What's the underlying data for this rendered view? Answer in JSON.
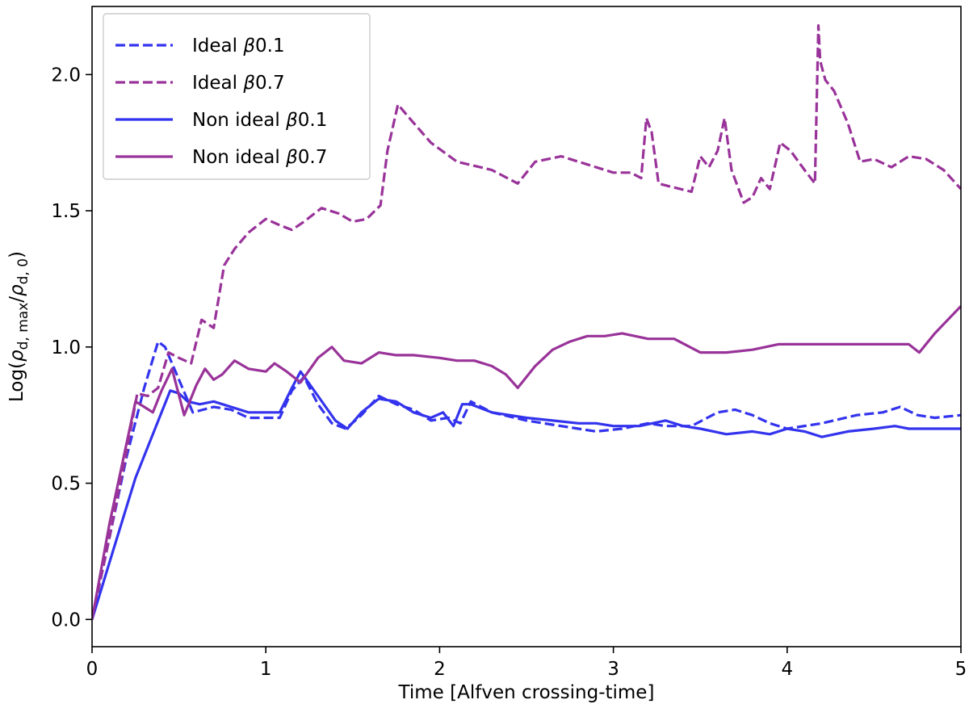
{
  "chart_data": {
    "type": "line",
    "title": "",
    "xlabel": "Time [Alfven crossing-time]",
    "ylabel_prefix": "Log(",
    "ylabel_rho": "ρ",
    "ylabel_sub_max": "d, max",
    "ylabel_slash": "/",
    "ylabel_sub_zero": "d, 0",
    "ylabel_suffix": ")",
    "xlim": [
      0,
      5
    ],
    "ylim": [
      -0.1,
      2.25
    ],
    "xticks": [
      "0",
      "1",
      "2",
      "3",
      "4",
      "5"
    ],
    "yticks": [
      "0.0",
      "0.5",
      "1.0",
      "1.5",
      "2.0"
    ],
    "grid": false,
    "legend_position": "top-left",
    "series": [
      {
        "name": "Ideal β0.1",
        "name_prefix": "Ideal ",
        "name_beta": "β",
        "name_value": "0.1",
        "color": "#3333ee",
        "dash": true,
        "x": [
          0,
          0.1,
          0.2,
          0.3,
          0.38,
          0.42,
          0.5,
          0.58,
          0.7,
          0.8,
          0.9,
          1.0,
          1.08,
          1.15,
          1.22,
          1.3,
          1.38,
          1.46,
          1.55,
          1.65,
          1.75,
          1.85,
          1.95,
          2.05,
          2.12,
          2.18,
          2.3,
          2.5,
          2.7,
          2.9,
          3.05,
          3.2,
          3.3,
          3.45,
          3.6,
          3.7,
          3.8,
          3.9,
          4.0,
          4.2,
          4.4,
          4.55,
          4.65,
          4.75,
          4.85,
          5.0
        ],
        "y": [
          0,
          0.3,
          0.6,
          0.85,
          1.02,
          1.0,
          0.88,
          0.76,
          0.78,
          0.77,
          0.74,
          0.74,
          0.74,
          0.84,
          0.89,
          0.79,
          0.72,
          0.7,
          0.75,
          0.82,
          0.79,
          0.77,
          0.73,
          0.74,
          0.72,
          0.8,
          0.76,
          0.73,
          0.71,
          0.69,
          0.7,
          0.72,
          0.71,
          0.71,
          0.76,
          0.77,
          0.75,
          0.72,
          0.7,
          0.72,
          0.75,
          0.76,
          0.78,
          0.75,
          0.74,
          0.75
        ]
      },
      {
        "name": "Ideal β0.7",
        "name_prefix": "Ideal ",
        "name_beta": "β",
        "name_value": "0.7",
        "color": "#993399",
        "dash": true,
        "x": [
          0,
          0.1,
          0.2,
          0.26,
          0.32,
          0.38,
          0.44,
          0.5,
          0.57,
          0.63,
          0.7,
          0.76,
          0.82,
          0.9,
          1.0,
          1.07,
          1.15,
          1.22,
          1.32,
          1.42,
          1.5,
          1.58,
          1.66,
          1.7,
          1.76,
          1.84,
          1.95,
          2.1,
          2.3,
          2.45,
          2.55,
          2.7,
          2.85,
          3.0,
          3.1,
          3.16,
          3.19,
          3.22,
          3.26,
          3.32,
          3.45,
          3.5,
          3.55,
          3.6,
          3.64,
          3.68,
          3.75,
          3.8,
          3.85,
          3.9,
          3.96,
          4.02,
          4.1,
          4.16,
          4.18,
          4.19,
          4.22,
          4.27,
          4.35,
          4.42,
          4.5,
          4.6,
          4.7,
          4.8,
          4.9,
          5.0
        ],
        "y": [
          0,
          0.3,
          0.62,
          0.83,
          0.82,
          0.85,
          0.98,
          0.96,
          0.94,
          1.1,
          1.07,
          1.3,
          1.36,
          1.42,
          1.47,
          1.45,
          1.43,
          1.46,
          1.51,
          1.49,
          1.46,
          1.47,
          1.52,
          1.72,
          1.89,
          1.83,
          1.75,
          1.68,
          1.65,
          1.6,
          1.68,
          1.7,
          1.67,
          1.64,
          1.64,
          1.62,
          1.84,
          1.79,
          1.6,
          1.59,
          1.57,
          1.7,
          1.66,
          1.72,
          1.84,
          1.65,
          1.53,
          1.55,
          1.62,
          1.58,
          1.75,
          1.72,
          1.65,
          1.6,
          2.18,
          2.05,
          1.98,
          1.94,
          1.82,
          1.68,
          1.69,
          1.66,
          1.7,
          1.69,
          1.65,
          1.58
        ]
      },
      {
        "name": "Non ideal β0.1",
        "name_prefix": "Non ideal ",
        "name_beta": "β",
        "name_value": "0.1",
        "color": "#3333ee",
        "dash": false,
        "x": [
          0,
          0.12,
          0.25,
          0.35,
          0.45,
          0.5,
          0.55,
          0.62,
          0.7,
          0.8,
          0.9,
          1.0,
          1.08,
          1.15,
          1.2,
          1.3,
          1.4,
          1.47,
          1.55,
          1.65,
          1.75,
          1.85,
          1.95,
          2.02,
          2.08,
          2.13,
          2.18,
          2.3,
          2.5,
          2.65,
          2.8,
          2.9,
          3.0,
          3.15,
          3.3,
          3.4,
          3.5,
          3.65,
          3.8,
          3.9,
          4.0,
          4.1,
          4.2,
          4.35,
          4.5,
          4.62,
          4.7,
          4.85,
          5.0
        ],
        "y": [
          0,
          0.25,
          0.52,
          0.68,
          0.84,
          0.83,
          0.8,
          0.79,
          0.8,
          0.78,
          0.76,
          0.76,
          0.76,
          0.85,
          0.91,
          0.82,
          0.73,
          0.7,
          0.76,
          0.81,
          0.8,
          0.76,
          0.74,
          0.76,
          0.71,
          0.79,
          0.79,
          0.76,
          0.74,
          0.73,
          0.72,
          0.72,
          0.71,
          0.71,
          0.73,
          0.71,
          0.7,
          0.68,
          0.69,
          0.68,
          0.7,
          0.69,
          0.67,
          0.69,
          0.7,
          0.71,
          0.7,
          0.7,
          0.7
        ]
      },
      {
        "name": "Non ideal β0.7",
        "name_prefix": "Non ideal ",
        "name_beta": "β",
        "name_value": "0.7",
        "color": "#993399",
        "dash": false,
        "x": [
          0,
          0.1,
          0.2,
          0.25,
          0.3,
          0.35,
          0.4,
          0.46,
          0.53,
          0.6,
          0.65,
          0.7,
          0.75,
          0.82,
          0.9,
          1.0,
          1.05,
          1.12,
          1.2,
          1.3,
          1.38,
          1.45,
          1.55,
          1.65,
          1.75,
          1.85,
          2.0,
          2.1,
          2.2,
          2.3,
          2.38,
          2.45,
          2.55,
          2.65,
          2.75,
          2.85,
          2.95,
          3.05,
          3.2,
          3.35,
          3.5,
          3.65,
          3.8,
          3.95,
          4.1,
          4.25,
          4.4,
          4.55,
          4.7,
          4.76,
          4.85,
          5.0
        ],
        "y": [
          0,
          0.35,
          0.65,
          0.8,
          0.78,
          0.76,
          0.84,
          0.92,
          0.75,
          0.86,
          0.92,
          0.88,
          0.9,
          0.95,
          0.92,
          0.91,
          0.94,
          0.91,
          0.87,
          0.96,
          1.0,
          0.95,
          0.94,
          0.98,
          0.97,
          0.97,
          0.96,
          0.95,
          0.95,
          0.93,
          0.9,
          0.85,
          0.93,
          0.99,
          1.02,
          1.04,
          1.04,
          1.05,
          1.03,
          1.03,
          0.98,
          0.98,
          0.99,
          1.01,
          1.01,
          1.01,
          1.01,
          1.01,
          1.01,
          0.98,
          1.05,
          1.15
        ]
      }
    ]
  }
}
